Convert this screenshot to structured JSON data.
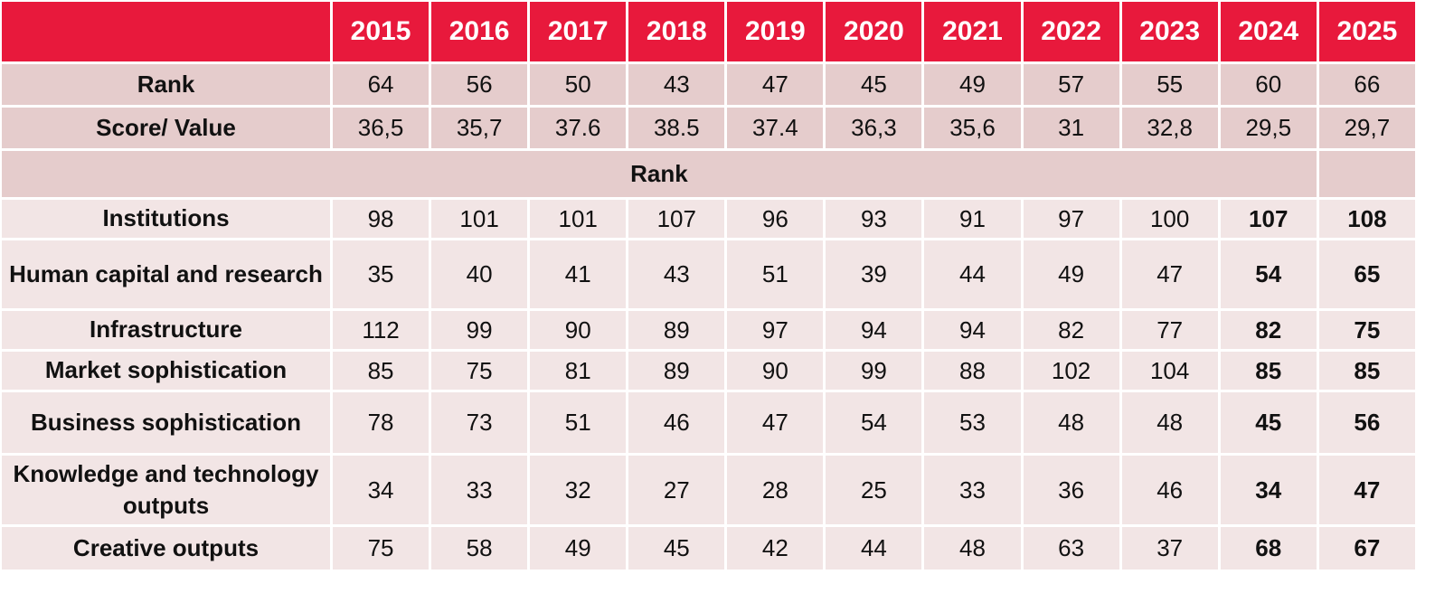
{
  "table": {
    "years": [
      "2015",
      "2016",
      "2017",
      "2018",
      "2019",
      "2020",
      "2021",
      "2022",
      "2023",
      "2024",
      "2025"
    ],
    "rows": [
      {
        "label": "Rank",
        "values": [
          "64",
          "56",
          "50",
          "43",
          "47",
          "45",
          "49",
          "57",
          "55",
          "60",
          "66"
        ]
      },
      {
        "label": "Score/ Value",
        "values": [
          "36,5",
          "35,7",
          "37.6",
          "38.5",
          "37.4",
          "36,3",
          "35,6",
          "31",
          "32,8",
          "29,5",
          "29,7"
        ]
      }
    ],
    "section": "Rank",
    "sub_rows": [
      {
        "label": "Institutions",
        "values": [
          "98",
          "101",
          "101",
          "107",
          "96",
          "93",
          "91",
          "97",
          "100",
          "107",
          "108"
        ]
      },
      {
        "label": "Human capital and research",
        "values": [
          "35",
          "40",
          "41",
          "43",
          "51",
          "39",
          "44",
          "49",
          "47",
          "54",
          "65"
        ]
      },
      {
        "label": "Infrastructure",
        "values": [
          "112",
          "99",
          "90",
          "89",
          "97",
          "94",
          "94",
          "82",
          "77",
          "82",
          "75"
        ]
      },
      {
        "label": "Market sophistication",
        "values": [
          "85",
          "75",
          "81",
          "89",
          "90",
          "99",
          "88",
          "102",
          "104",
          "85",
          "85"
        ]
      },
      {
        "label": "Business sophistication",
        "values": [
          "78",
          "73",
          "51",
          "46",
          "47",
          "54",
          "53",
          "48",
          "48",
          "45",
          "56"
        ]
      },
      {
        "label": "Knowledge and technology outputs",
        "values": [
          "34",
          "33",
          "32",
          "27",
          "28",
          "25",
          "33",
          "36",
          "46",
          "34",
          "47"
        ]
      },
      {
        "label": "Creative outputs",
        "values": [
          "75",
          "58",
          "49",
          "45",
          "42",
          "44",
          "48",
          "63",
          "37",
          "68",
          "67"
        ]
      }
    ]
  }
}
